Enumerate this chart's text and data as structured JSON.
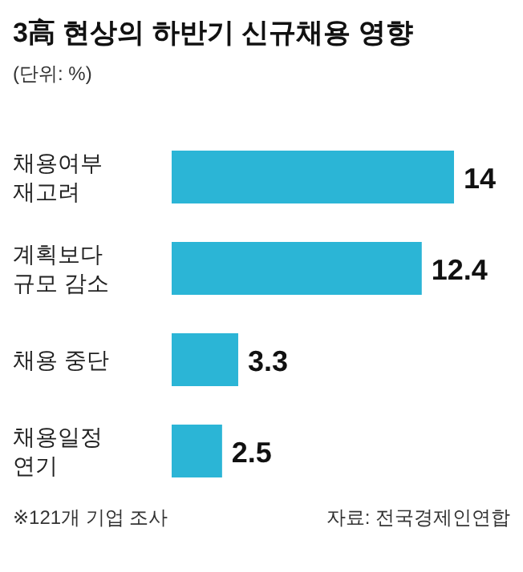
{
  "chart_data": {
    "type": "bar",
    "orientation": "horizontal",
    "title": "3高 현상의 하반기 신규채용 영향",
    "subtitle": "(단위: %)",
    "categories": [
      "채용여부\n재고려",
      "계획보다\n규모 감소",
      "채용 중단",
      "채용일정\n연기"
    ],
    "values": [
      14,
      12.4,
      3.3,
      2.5
    ],
    "color": "#2bb5d6",
    "data_labels": true,
    "annotations": [
      "※121개 기업 조사",
      "자료: 전국경제인연합"
    ]
  }
}
